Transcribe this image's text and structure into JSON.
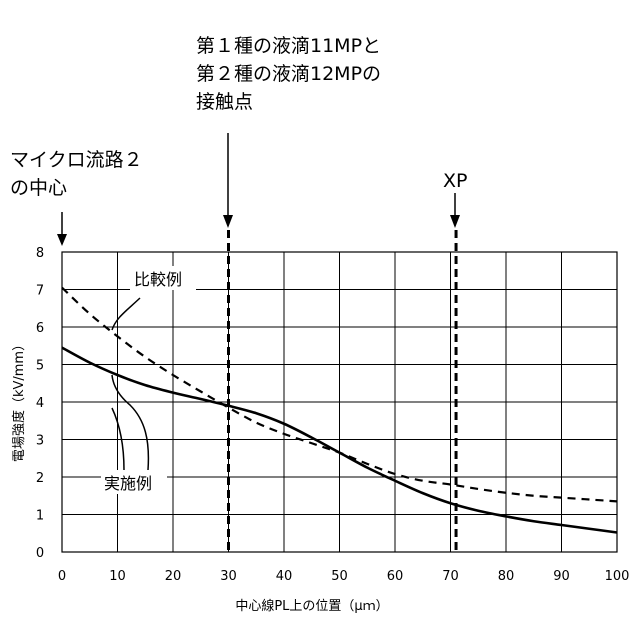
{
  "chart_data": {
    "type": "line",
    "xlabel": "中心線PL上の位置（μｍ）",
    "ylabel": "電場強度（kV/mm）",
    "xlim": [
      0,
      100
    ],
    "ylim": [
      0,
      8
    ],
    "x_ticks": [
      "0",
      "10",
      "20",
      "30",
      "40",
      "50",
      "60",
      "70",
      "80",
      "90",
      "100"
    ],
    "y_ticks": [
      "0",
      "1",
      "2",
      "3",
      "4",
      "5",
      "6",
      "7",
      "8"
    ],
    "grid": true,
    "colors": {
      "line": "#000000",
      "grid": "#000000",
      "background": "#ffffff"
    },
    "series": [
      {
        "name": "実施例",
        "style": "solid",
        "x": [
          0,
          5,
          10,
          15,
          20,
          25,
          30,
          35,
          40,
          45,
          50,
          55,
          60,
          65,
          70,
          75,
          80,
          85,
          90,
          95,
          100
        ],
        "y": [
          5.45,
          5.05,
          4.72,
          4.45,
          4.25,
          4.08,
          3.9,
          3.7,
          3.42,
          3.05,
          2.65,
          2.25,
          1.9,
          1.57,
          1.3,
          1.1,
          0.95,
          0.82,
          0.72,
          0.62,
          0.52
        ]
      },
      {
        "name": "比較例",
        "style": "dashed",
        "x": [
          0,
          5,
          10,
          15,
          20,
          25,
          30,
          35,
          40,
          45,
          50,
          55,
          60,
          65,
          70,
          75,
          80,
          85,
          90,
          95,
          100
        ],
        "y": [
          7.05,
          6.35,
          5.75,
          5.2,
          4.72,
          4.28,
          3.85,
          3.45,
          3.15,
          2.9,
          2.65,
          2.35,
          2.08,
          1.9,
          1.8,
          1.68,
          1.58,
          1.5,
          1.45,
          1.4,
          1.35
        ]
      }
    ],
    "reference_lines": [
      {
        "x": 30,
        "style": "dashed"
      },
      {
        "x": 71,
        "style": "dashed"
      }
    ],
    "annotations": {
      "droplet_contact": [
        "第１種の液滴11MPと",
        "第２種の液滴12MPの",
        "接触点"
      ],
      "microchannel_center": [
        "マイクロ流路２",
        "の中心"
      ],
      "xp": "XP"
    },
    "legend_labels": {
      "comparative": "比較例",
      "embodiment": "実施例"
    }
  }
}
